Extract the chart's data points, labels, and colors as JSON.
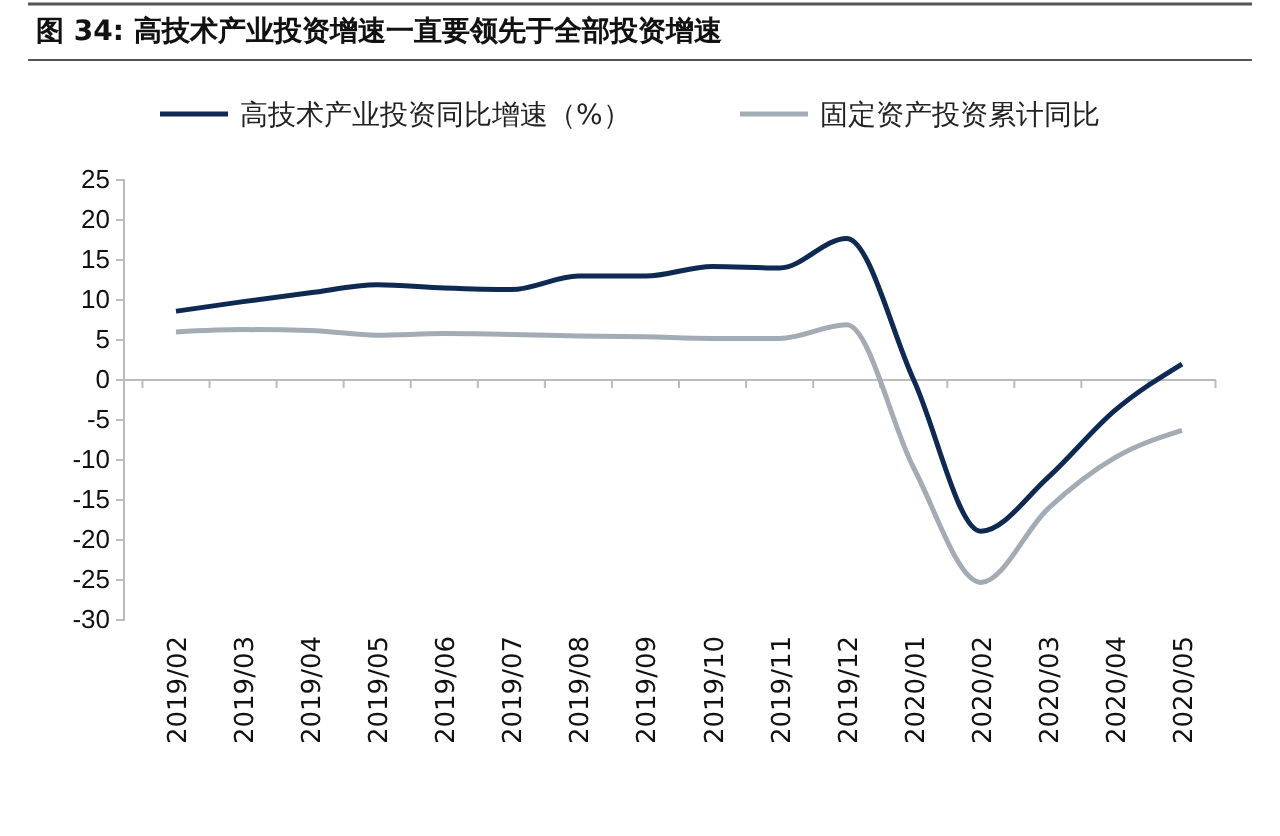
{
  "chart_data": {
    "type": "line",
    "title": "图 34: 高技术产业投资增速一直要领先于全部投资增速",
    "categories": [
      "2019/02",
      "2019/03",
      "2019/04",
      "2019/05",
      "2019/06",
      "2019/07",
      "2019/08",
      "2019/09",
      "2019/10",
      "2019/11",
      "2019/12",
      "2020/01",
      "2020/02",
      "2020/03",
      "2020/04",
      "2020/05"
    ],
    "series": [
      {
        "name": "高技术产业投资同比增速（%）",
        "color": "#0e2a52",
        "values": [
          8.6,
          9.8,
          10.9,
          11.9,
          11.5,
          11.3,
          13.0,
          13.0,
          14.2,
          14.0,
          17.7,
          0,
          -18.9,
          -12.2,
          -3.8,
          2.0
        ]
      },
      {
        "name": "固定资产投资累计同比",
        "color": "#a3abb5",
        "values": [
          6.0,
          6.3,
          6.2,
          5.6,
          5.8,
          5.7,
          5.5,
          5.4,
          5.2,
          5.2,
          6.9,
          -11,
          -25.3,
          -16.1,
          -9.7,
          -6.3
        ]
      }
    ],
    "ylim": [
      -30,
      25
    ],
    "yticks": [
      -30,
      -25,
      -20,
      -15,
      -10,
      -5,
      0,
      5,
      10,
      15,
      20,
      25
    ],
    "legend": "top",
    "line_style": "solid",
    "marker": "none"
  }
}
